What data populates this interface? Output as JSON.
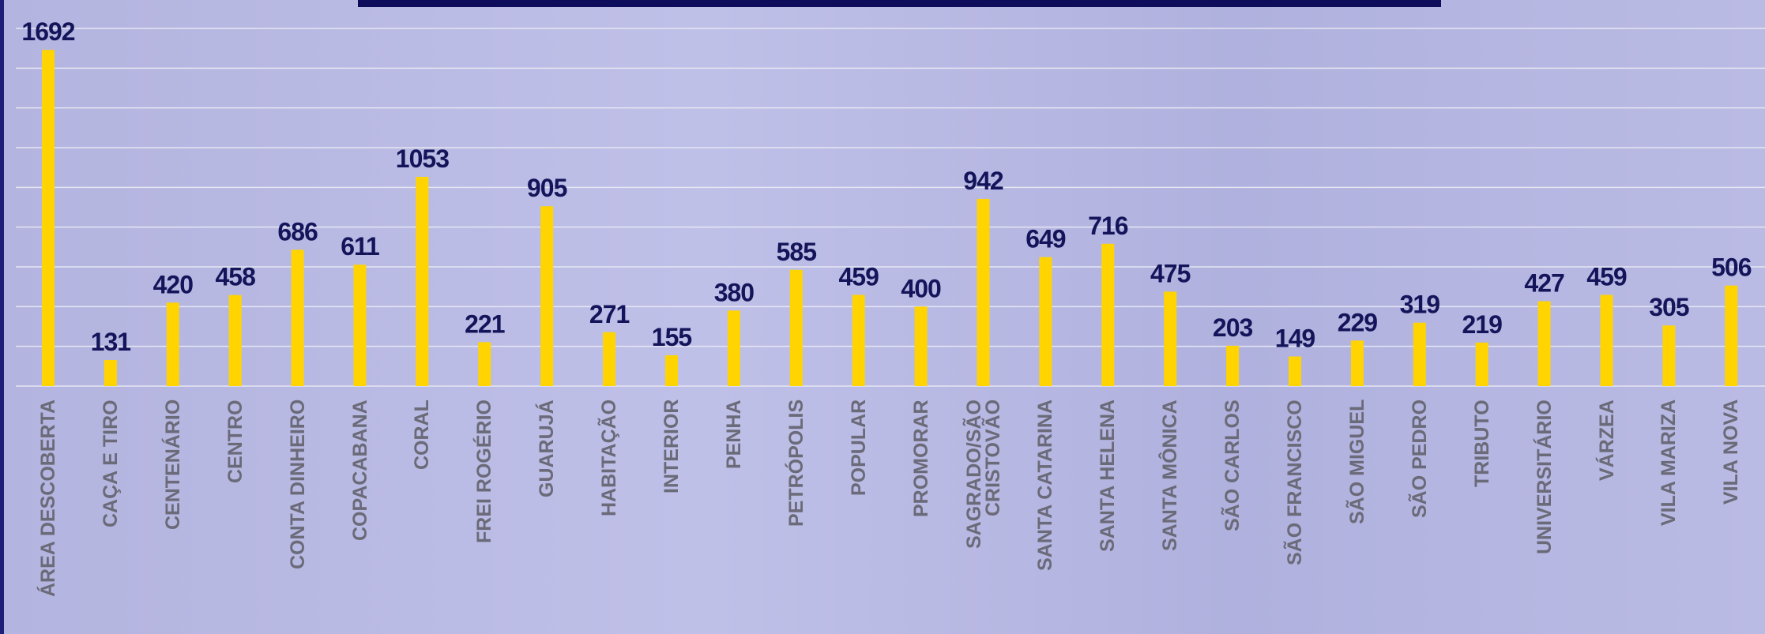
{
  "chart_data": {
    "type": "bar",
    "categories": [
      "ÁREA DESCOBERTA",
      "CAÇA E TIRO",
      "CENTENÁRIO",
      "CENTRO",
      "CONTA DINHEIRO",
      "COPACABANA",
      "CORAL",
      "FREI ROGÉRIO",
      "GUARUJÁ",
      "HABITAÇÃO",
      "INTERIOR",
      "PENHA",
      "PETRÓPOLIS",
      "POPULAR",
      "PROMORAR",
      "SAGRADO/SÃO CRISTOVÃO",
      "SANTA CATARINA",
      "SANTA HELENA",
      "SANTA MÔNICA",
      "SÃO CARLOS",
      "SÃO FRANCISCO",
      "SÃO MIGUEL",
      "SÃO PEDRO",
      "TRIBUTO",
      "UNIVERSITÁRIO",
      "VÁRZEA",
      "VILA MARIZA",
      "VILA NOVA"
    ],
    "values": [
      1692,
      131,
      420,
      458,
      686,
      611,
      1053,
      221,
      905,
      271,
      155,
      380,
      585,
      459,
      400,
      942,
      649,
      716,
      475,
      203,
      149,
      229,
      319,
      219,
      427,
      459,
      305,
      506
    ],
    "color": "#ffd400",
    "ylim": [
      0,
      1800
    ],
    "yticks": [
      0,
      200,
      400,
      600,
      800,
      1000,
      1200,
      1400,
      1600,
      1800
    ],
    "grid": true
  }
}
